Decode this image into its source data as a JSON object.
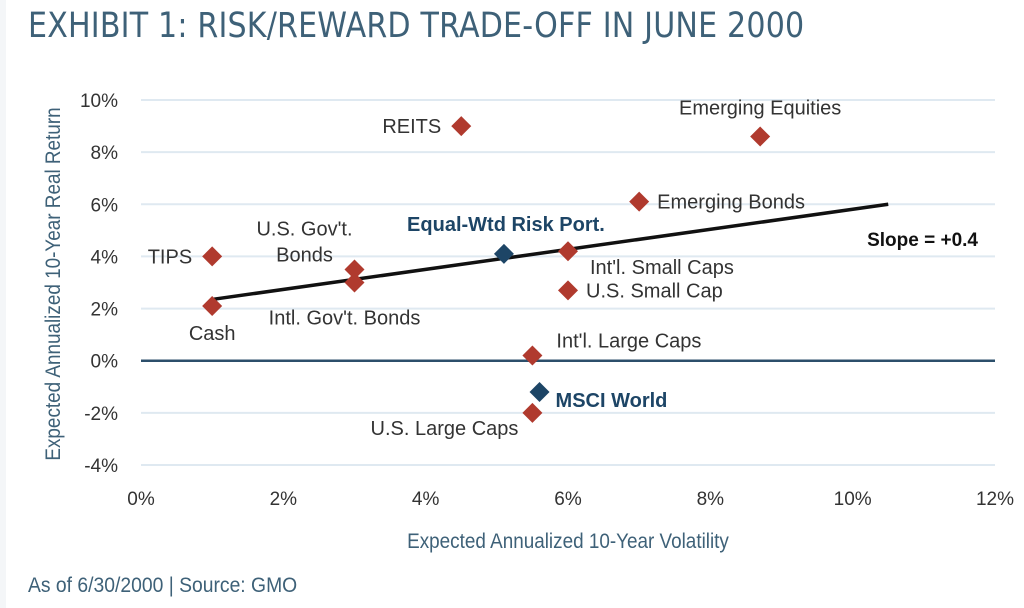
{
  "title": "EXHIBIT 1: RISK/REWARD TRADE-OFF IN JUNE 2000",
  "footer": "As of 6/30/2000 | Source: GMO",
  "colors": {
    "title": "#3e6178",
    "asset_marker": "#b03a2e",
    "portfolio_marker": "#1d4566",
    "gridline": "#dfe9f1",
    "zero_line": "#2c4f6b",
    "trend_line": "#111111"
  },
  "chart_data": {
    "type": "scatter",
    "title": "EXHIBIT 1: RISK/REWARD TRADE-OFF IN JUNE 2000",
    "xlabel": "Expected Annualized 10-Year Volatility",
    "ylabel": "Expected Annualized 10-Year Real Return",
    "xlim": [
      0,
      12
    ],
    "ylim": [
      -4,
      10
    ],
    "x_ticks": [
      0,
      2,
      4,
      6,
      8,
      10,
      12
    ],
    "x_tick_labels": [
      "0%",
      "2%",
      "4%",
      "6%",
      "8%",
      "10%",
      "12%"
    ],
    "y_ticks": [
      10,
      8,
      6,
      4,
      2,
      0,
      -2,
      -4
    ],
    "y_tick_labels": [
      "10%",
      "8%",
      "6%",
      "4%",
      "2%",
      "0%",
      "-2%",
      "-4%"
    ],
    "grid": "horizontal",
    "points": [
      {
        "name": "TIPS",
        "x": 1.0,
        "y": 4.0,
        "group": "asset",
        "label_pos": "left"
      },
      {
        "name": "Cash",
        "x": 1.0,
        "y": 2.1,
        "group": "asset",
        "label_pos": "below"
      },
      {
        "name": "U.S. Gov't. Bonds",
        "x": 3.0,
        "y": 3.5,
        "group": "asset",
        "label_pos": "above-left",
        "label_lines": [
          "U.S. Gov't.",
          "Bonds"
        ]
      },
      {
        "name": "Intl. Gov't. Bonds",
        "x": 3.0,
        "y": 3.0,
        "group": "asset",
        "label_pos": "below"
      },
      {
        "name": "REITS",
        "x": 4.5,
        "y": 9.0,
        "group": "asset",
        "label_pos": "left"
      },
      {
        "name": "Equal-Wtd Risk Port.",
        "x": 5.1,
        "y": 4.1,
        "group": "portfolio",
        "label_pos": "above"
      },
      {
        "name": "Int'l. Small Caps",
        "x": 6.0,
        "y": 4.2,
        "group": "asset",
        "label_pos": "below-right"
      },
      {
        "name": "U.S. Small Cap",
        "x": 6.0,
        "y": 2.7,
        "group": "asset",
        "label_pos": "right"
      },
      {
        "name": "Int'l. Large Caps",
        "x": 5.5,
        "y": 0.2,
        "group": "asset",
        "label_pos": "above-right"
      },
      {
        "name": "MSCI World",
        "x": 5.6,
        "y": -1.2,
        "group": "portfolio",
        "label_pos": "right"
      },
      {
        "name": "U.S. Large Caps",
        "x": 5.5,
        "y": -2.0,
        "group": "asset",
        "label_pos": "below-left"
      },
      {
        "name": "Emerging Bonds",
        "x": 7.0,
        "y": 6.1,
        "group": "asset",
        "label_pos": "right"
      },
      {
        "name": "Emerging Equities",
        "x": 8.7,
        "y": 8.6,
        "group": "asset",
        "label_pos": "above"
      }
    ],
    "trend_line": {
      "x": [
        1.0,
        10.5
      ],
      "y": [
        2.35,
        6.0
      ],
      "label": "Slope = +0.4",
      "slope": 0.4
    }
  }
}
